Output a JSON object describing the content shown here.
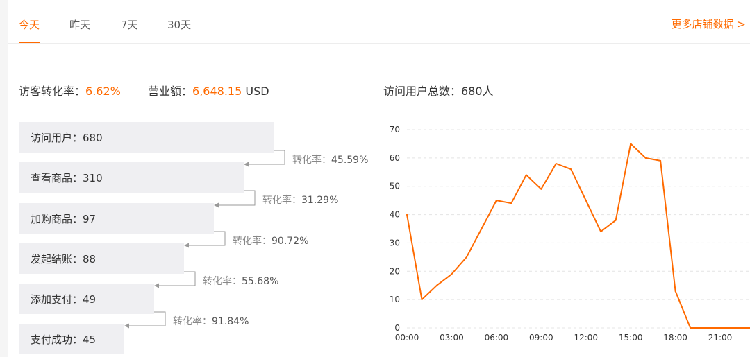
{
  "tabs": [
    {
      "label": "今天",
      "active": true
    },
    {
      "label": "昨天",
      "active": false
    },
    {
      "label": "7天",
      "active": false
    },
    {
      "label": "30天",
      "active": false
    }
  ],
  "more_link": "更多店铺数据 >",
  "stats": {
    "conversion_label": "访客转化率：",
    "conversion_value": "6.62%",
    "revenue_label": "营业额：",
    "revenue_value": "6,648.15",
    "revenue_unit": "USD",
    "visitors_total": "访问用户总数：680人"
  },
  "funnel": [
    {
      "label": "访问用户：680",
      "value": 680
    },
    {
      "label": "查看商品：310",
      "value": 310
    },
    {
      "label": "加购商品：97",
      "value": 97
    },
    {
      "label": "发起结账：88",
      "value": 88
    },
    {
      "label": "添加支付：49",
      "value": 49
    },
    {
      "label": "支付成功：45",
      "value": 45
    }
  ],
  "rates": [
    {
      "label": "转化率：",
      "value": "45.59%"
    },
    {
      "label": "转化率：",
      "value": "31.29%"
    },
    {
      "label": "转化率：",
      "value": "90.72%"
    },
    {
      "label": "转化率：",
      "value": "55.68%"
    },
    {
      "label": "转化率：",
      "value": "91.84%"
    }
  ],
  "colors": {
    "accent": "#ff6a00",
    "bar_bg": "#efeff2"
  },
  "chart_data": {
    "type": "line",
    "x": [
      "00:00",
      "01:00",
      "02:00",
      "03:00",
      "04:00",
      "05:00",
      "06:00",
      "07:00",
      "08:00",
      "09:00",
      "10:00",
      "11:00",
      "12:00",
      "13:00",
      "14:00",
      "15:00",
      "16:00",
      "17:00",
      "18:00",
      "19:00",
      "20:00",
      "21:00",
      "22:00",
      "23:00"
    ],
    "x_tick_labels": [
      "00:00",
      "03:00",
      "06:00",
      "09:00",
      "12:00",
      "15:00",
      "18:00",
      "21:00"
    ],
    "series": [
      {
        "values": [
          40,
          10,
          15,
          19,
          25,
          35,
          45,
          44,
          54,
          49,
          58,
          56,
          45,
          34,
          38,
          65,
          60,
          59,
          13,
          0,
          0,
          0,
          0,
          0
        ]
      }
    ],
    "y_ticks": [
      0,
      10,
      20,
      30,
      40,
      50,
      60,
      70
    ],
    "ylim": [
      0,
      70
    ],
    "grid": true,
    "color": "#ff6a00"
  }
}
